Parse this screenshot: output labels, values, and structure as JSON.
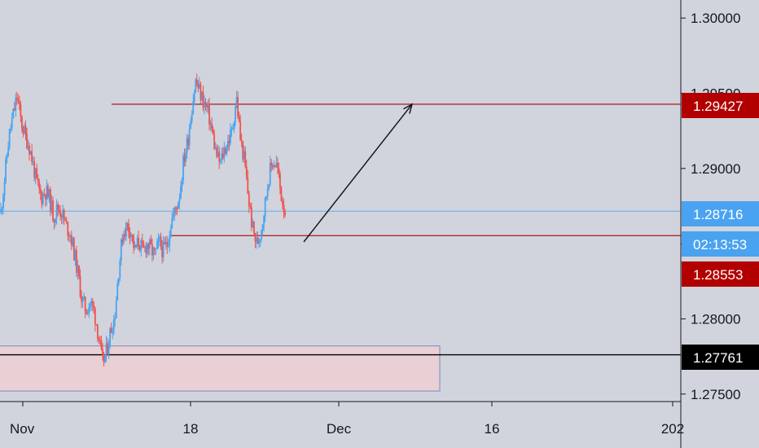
{
  "chart_data": {
    "type": "candlestick",
    "y_axis": {
      "range": [
        1.2745,
        1.3012
      ],
      "ticks": [
        "1.30000",
        "1.29500",
        "1.29000",
        "1.28500",
        "1.28000",
        "1.27500"
      ],
      "position": "right"
    },
    "x_axis": {
      "ticks": [
        "Nov",
        "18",
        "Dec",
        "16",
        "202"
      ]
    },
    "grid": false,
    "colors": {
      "background": "#d1d4dc",
      "up": "#4aa3f0",
      "down": "#ef5350",
      "level_line": "#b22833",
      "current_price_line": "#4aa3f0",
      "support_line": "#000000",
      "zone_fill": "#e8d0d4",
      "zone_border": "#7f86c4"
    },
    "price_tags": [
      {
        "label": "1.29427",
        "value": 1.29427,
        "color": "#b20000"
      },
      {
        "label": "1.28716",
        "value": 1.28716,
        "color": "#4aa3f0"
      },
      {
        "label": "02:13:53",
        "value": 1.28615,
        "color": "#4aa3f0"
      },
      {
        "label": "1.28553",
        "value": 1.28553,
        "color": "#b20000"
      },
      {
        "label": "1.27761",
        "value": 1.27761,
        "color": "#000000"
      }
    ],
    "levels": [
      {
        "value": 1.29427,
        "from_index": 0.52,
        "to_index": 1.0,
        "color": "#b22833"
      },
      {
        "value": 1.28553,
        "from_index": 0.25,
        "to_index": 1.0,
        "color": "#b22833"
      },
      {
        "value": 1.27761,
        "from_index": 0.0,
        "to_index": 1.0,
        "color": "#000000"
      },
      {
        "value": 1.28716,
        "from_index": 0.0,
        "to_index": 1.0,
        "color": "#4aa3f0",
        "dashed": true
      }
    ],
    "zone": {
      "low": 1.2752,
      "high": 1.2782
    },
    "projection_arrow": {
      "from_price": 1.28553,
      "to_price": 1.29427
    },
    "price_path": [
      1.2871,
      1.2895,
      1.2921,
      1.2935,
      1.2948,
      1.2931,
      1.2922,
      1.2915,
      1.2902,
      1.2888,
      1.2881,
      1.2885,
      1.288,
      1.2868,
      1.2874,
      1.2871,
      1.2862,
      1.2858,
      1.2845,
      1.283,
      1.2812,
      1.2806,
      1.2811,
      1.2805,
      1.279,
      1.277,
      1.2778,
      1.2792,
      1.2801,
      1.2832,
      1.2856,
      1.2862,
      1.2859,
      1.2845,
      1.2852,
      1.2844,
      1.285,
      1.2846,
      1.2842,
      1.2851,
      1.2845,
      1.285,
      1.2866,
      1.2872,
      1.2883,
      1.2905,
      1.2918,
      1.294,
      1.2958,
      1.2951,
      1.2944,
      1.2938,
      1.2925,
      1.291,
      1.2903,
      1.2912,
      1.2918,
      1.2925,
      1.2948,
      1.292,
      1.2905,
      1.288,
      1.286,
      1.285,
      1.2858,
      1.2875,
      1.2895,
      1.2905,
      1.2902,
      1.2883,
      1.2872
    ]
  }
}
